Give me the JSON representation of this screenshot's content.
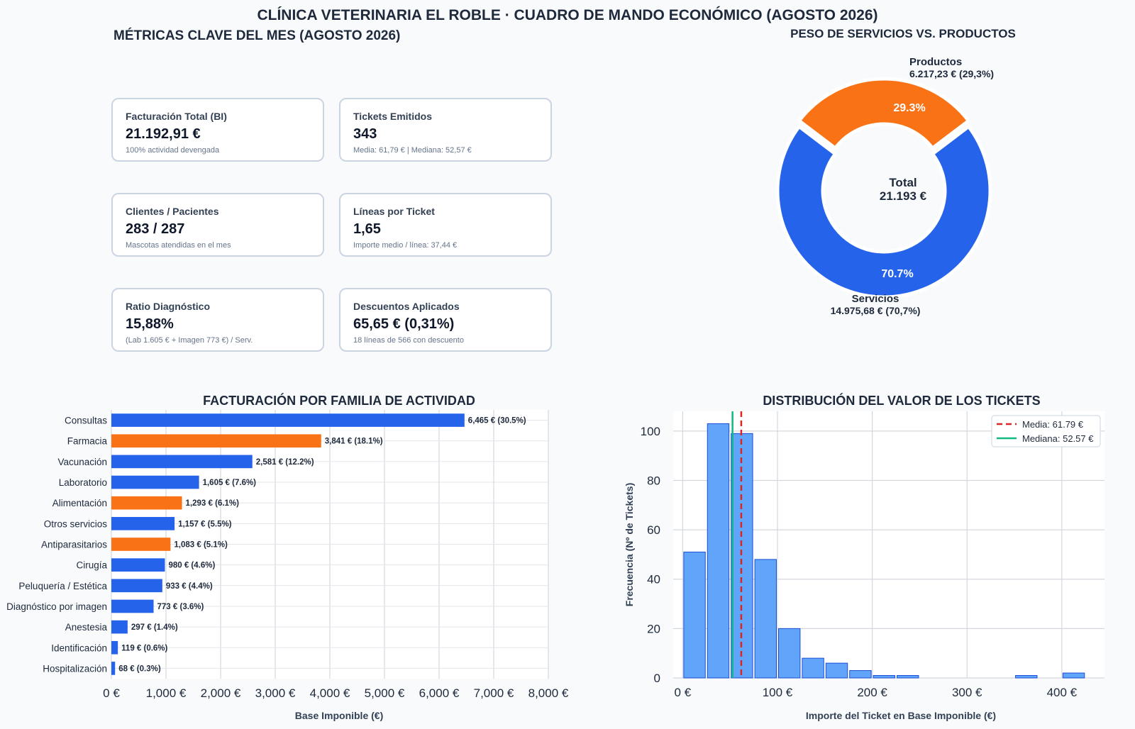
{
  "page": {
    "title": "CLÍNICA VETERINARIA EL ROBLE · CUADRO DE MANDO ECONÓMICO (AGOSTO 2026)"
  },
  "kpis": {
    "title": "MÉTRICAS CLAVE DEL MES (AGOSTO 2026)",
    "cards": [
      {
        "label": "Facturación Total (BI)",
        "value": "21.192,91 €",
        "sub": "100% actividad devengada"
      },
      {
        "label": "Tickets Emitidos",
        "value": "343",
        "sub": "Media: 61,79 € | Mediana: 52,57 €"
      },
      {
        "label": "Clientes / Pacientes",
        "value": "283 / 287",
        "sub": "Mascotas atendidas en el mes"
      },
      {
        "label": "Líneas por Ticket",
        "value": "1,65",
        "sub": "Importe medio / línea: 37,44 €"
      },
      {
        "label": "Ratio Diagnóstico",
        "value": "15,88%",
        "sub": "(Lab 1.605 € + Imagen 773 €) / Serv."
      },
      {
        "label": "Descuentos Aplicados",
        "value": "65,65 € (0,31%)",
        "sub": "18 líneas de 566 con descuento"
      }
    ]
  },
  "chart_data": [
    {
      "type": "pie",
      "title": "PESO DE SERVICIOS VS. PRODUCTOS",
      "center_label": [
        "Total",
        "21.193 €"
      ],
      "slices": [
        {
          "name": "Productos",
          "value": 6217.23,
          "value_label": "6.217,23 € (29,3%)",
          "pct_label": "29.3%",
          "color": "#f97316"
        },
        {
          "name": "Servicios",
          "value": 14975.68,
          "value_label": "14.975,68 € (70,7%)",
          "pct_label": "70.7%",
          "color": "#2563eb"
        }
      ]
    },
    {
      "type": "bar",
      "orientation": "horizontal",
      "title": "FACTURACIÓN POR FAMILIA DE ACTIVIDAD",
      "xlabel": "Base Imponible (€)",
      "xlim": [
        0,
        8000
      ],
      "xticks": [
        "0 €",
        "1,000 €",
        "2,000 €",
        "3,000 €",
        "4,000 €",
        "5,000 €",
        "6,000 €",
        "7,000 €",
        "8,000 €"
      ],
      "grid": true,
      "bars": [
        {
          "category": "Consultas",
          "value": 6465,
          "label": "6,465 € (30.5%)",
          "color": "#2563eb"
        },
        {
          "category": "Farmacia",
          "value": 3841,
          "label": "3,841 € (18.1%)",
          "color": "#f97316"
        },
        {
          "category": "Vacunación",
          "value": 2581,
          "label": "2,581 € (12.2%)",
          "color": "#2563eb"
        },
        {
          "category": "Laboratorio",
          "value": 1605,
          "label": "1,605 € (7.6%)",
          "color": "#2563eb"
        },
        {
          "category": "Alimentación",
          "value": 1293,
          "label": "1,293 € (6.1%)",
          "color": "#f97316"
        },
        {
          "category": "Otros servicios",
          "value": 1157,
          "label": "1,157 € (5.5%)",
          "color": "#2563eb"
        },
        {
          "category": "Antiparasitarios",
          "value": 1083,
          "label": "1,083 € (5.1%)",
          "color": "#f97316"
        },
        {
          "category": "Cirugía",
          "value": 980,
          "label": "980 € (4.6%)",
          "color": "#2563eb"
        },
        {
          "category": "Peluquería / Estética",
          "value": 933,
          "label": "933 € (4.4%)",
          "color": "#2563eb"
        },
        {
          "category": "Diagnóstico por imagen",
          "value": 773,
          "label": "773 € (3.6%)",
          "color": "#2563eb"
        },
        {
          "category": "Anestesia",
          "value": 297,
          "label": "297 € (1.4%)",
          "color": "#2563eb"
        },
        {
          "category": "Identificación",
          "value": 119,
          "label": "119 € (0.6%)",
          "color": "#2563eb"
        },
        {
          "category": "Hospitalización",
          "value": 68,
          "label": "68 € (0.3%)",
          "color": "#2563eb"
        }
      ]
    },
    {
      "type": "bar",
      "subtype": "histogram",
      "title": "DISTRIBUCIÓN DEL VALOR DE LOS TICKETS",
      "xlabel": "Importe del Ticket en Base Imponible (€)",
      "ylabel": "Frecuencia (Nº de Tickets)",
      "xlim": [
        -10,
        445
      ],
      "ylim": [
        0,
        108
      ],
      "xticks": [
        0,
        100,
        200,
        300,
        400
      ],
      "xtick_labels": [
        "0 €",
        "100 €",
        "200 €",
        "300 €",
        "400 €"
      ],
      "yticks": [
        0,
        20,
        40,
        60,
        80,
        100
      ],
      "grid": true,
      "bar_color": "#60a5fa",
      "bins": [
        {
          "start": 0,
          "end": 25,
          "count": 51
        },
        {
          "start": 25,
          "end": 50,
          "count": 103
        },
        {
          "start": 50,
          "end": 75,
          "count": 99
        },
        {
          "start": 75,
          "end": 100,
          "count": 48
        },
        {
          "start": 100,
          "end": 125,
          "count": 20
        },
        {
          "start": 125,
          "end": 150,
          "count": 8
        },
        {
          "start": 150,
          "end": 175,
          "count": 6
        },
        {
          "start": 175,
          "end": 200,
          "count": 3
        },
        {
          "start": 200,
          "end": 225,
          "count": 1
        },
        {
          "start": 225,
          "end": 250,
          "count": 1
        },
        {
          "start": 250,
          "end": 275,
          "count": 0
        },
        {
          "start": 275,
          "end": 300,
          "count": 0
        },
        {
          "start": 300,
          "end": 325,
          "count": 0
        },
        {
          "start": 325,
          "end": 350,
          "count": 0
        },
        {
          "start": 350,
          "end": 375,
          "count": 1
        },
        {
          "start": 375,
          "end": 400,
          "count": 0
        },
        {
          "start": 400,
          "end": 425,
          "count": 2
        }
      ],
      "reference_lines": [
        {
          "name": "Media: 61.79 €",
          "value": 61.79,
          "color": "#dc2626",
          "style": "dashed"
        },
        {
          "name": "Mediana: 52.57 €",
          "value": 52.57,
          "color": "#10b981",
          "style": "solid"
        }
      ],
      "legend": "top-right"
    }
  ]
}
